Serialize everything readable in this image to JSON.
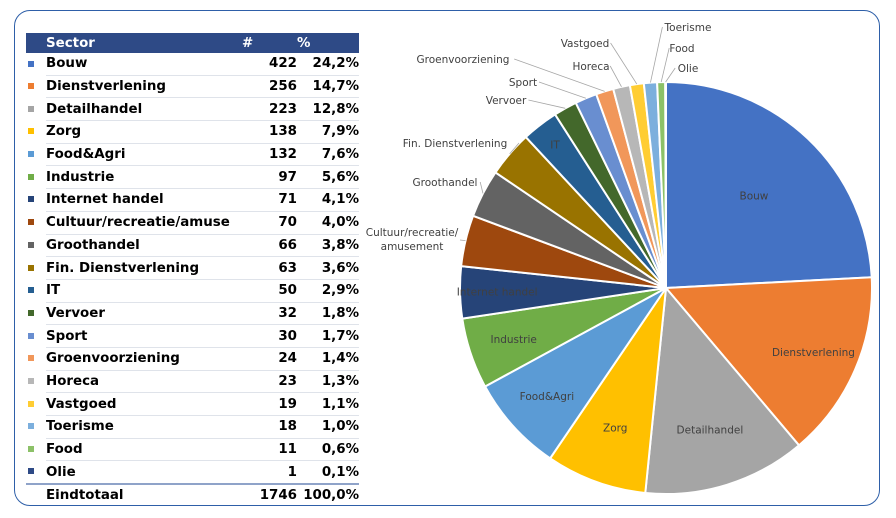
{
  "table": {
    "header": {
      "sector": "Sector",
      "count": "#",
      "pct": "%"
    },
    "total": {
      "label": "Eindtotaal",
      "count": "1746",
      "pct": "100,0%"
    }
  },
  "chart_data": {
    "type": "pie",
    "title": "",
    "total": 1746,
    "slices": [
      {
        "label": "Bouw",
        "value": 422,
        "pct": "24,2%",
        "color": "#4472c4"
      },
      {
        "label": "Dienstverlening",
        "value": 256,
        "pct": "14,7%",
        "color": "#ed7d31"
      },
      {
        "label": "Detailhandel",
        "value": 223,
        "pct": "12,8%",
        "color": "#a5a5a5"
      },
      {
        "label": "Zorg",
        "value": 138,
        "pct": "7,9%",
        "color": "#ffc000"
      },
      {
        "label": "Food&Agri",
        "value": 132,
        "pct": "7,6%",
        "color": "#5b9bd5"
      },
      {
        "label": "Industrie",
        "value": 97,
        "pct": "5,6%",
        "color": "#70ad47"
      },
      {
        "label": "Internet handel",
        "value": 71,
        "pct": "4,1%",
        "color": "#264478"
      },
      {
        "label": "Cultuur/recreatie/amuse",
        "value": 70,
        "pct": "4,0%",
        "color": "#9e480e",
        "chart_label": "Cultuur/recreatie/ amusement"
      },
      {
        "label": "Groothandel",
        "value": 66,
        "pct": "3,8%",
        "color": "#636363"
      },
      {
        "label": "Fin. Dienstverlening",
        "value": 63,
        "pct": "3,6%",
        "color": "#997300"
      },
      {
        "label": "IT",
        "value": 50,
        "pct": "2,9%",
        "color": "#255e91"
      },
      {
        "label": "Vervoer",
        "value": 32,
        "pct": "1,8%",
        "color": "#43682b"
      },
      {
        "label": "Sport",
        "value": 30,
        "pct": "1,7%",
        "color": "#698ed0"
      },
      {
        "label": "Groenvoorziening",
        "value": 24,
        "pct": "1,4%",
        "color": "#f1975a"
      },
      {
        "label": "Horeca",
        "value": 23,
        "pct": "1,3%",
        "color": "#b7b7b7"
      },
      {
        "label": "Vastgoed",
        "value": 19,
        "pct": "1,1%",
        "color": "#ffcd33"
      },
      {
        "label": "Toerisme",
        "value": 18,
        "pct": "1,0%",
        "color": "#7cafdd"
      },
      {
        "label": "Food",
        "value": 11,
        "pct": "0,6%",
        "color": "#8cc168"
      },
      {
        "label": "Olie",
        "value": 1,
        "pct": "0,1%",
        "color": "#2e4a86"
      }
    ]
  }
}
